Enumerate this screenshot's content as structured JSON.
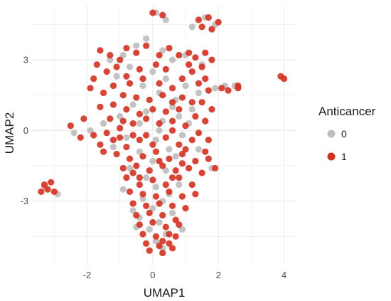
{
  "chart_data": {
    "type": "scatter",
    "xlabel": "UMAP1",
    "ylabel": "UMAP2",
    "xlim": [
      -3.7,
      4.4
    ],
    "ylim": [
      -5.7,
      5.3
    ],
    "x_ticks": [
      -2,
      0,
      2,
      4
    ],
    "y_ticks": [
      -3,
      0,
      3
    ],
    "grid": true,
    "legend": {
      "title": "Anticancer",
      "placement": "right",
      "entries": [
        {
          "label": "0",
          "color": "#bdbdbd"
        },
        {
          "label": "1",
          "color": "#d7301f"
        }
      ]
    },
    "series": [
      {
        "name": "0",
        "color": "#bdbdbd",
        "points": [
          [
            -0.9,
            3.2
          ],
          [
            -0.5,
            3.6
          ],
          [
            -0.2,
            3.9
          ],
          [
            0.3,
            3.4
          ],
          [
            0.6,
            3.0
          ],
          [
            -1.3,
            3.0
          ],
          [
            -0.7,
            2.7
          ],
          [
            0.0,
            2.5
          ],
          [
            0.4,
            2.2
          ],
          [
            -1.1,
            2.3
          ],
          [
            -0.3,
            1.9
          ],
          [
            0.2,
            1.6
          ],
          [
            0.7,
            1.3
          ],
          [
            1.0,
            1.9
          ],
          [
            1.4,
            1.6
          ],
          [
            1.9,
            1.8
          ],
          [
            2.2,
            1.9
          ],
          [
            2.5,
            1.9
          ],
          [
            1.2,
            0.9
          ],
          [
            0.8,
            0.6
          ],
          [
            0.3,
            0.4
          ],
          [
            -0.2,
            0.8
          ],
          [
            -0.6,
            1.1
          ],
          [
            -1.0,
            0.6
          ],
          [
            -1.5,
            0.3
          ],
          [
            -1.9,
            0.0
          ],
          [
            -2.4,
            -0.1
          ],
          [
            0.1,
            -0.4
          ],
          [
            0.5,
            -0.8
          ],
          [
            -0.4,
            -0.9
          ],
          [
            0.0,
            -1.3
          ],
          [
            0.4,
            -1.7
          ],
          [
            -0.2,
            -2.0
          ],
          [
            0.1,
            -2.4
          ],
          [
            0.5,
            -2.7
          ],
          [
            -0.3,
            -2.9
          ],
          [
            0.0,
            -3.3
          ],
          [
            0.6,
            -3.5
          ],
          [
            -0.4,
            -3.7
          ],
          [
            0.2,
            -3.9
          ],
          [
            -0.1,
            -4.2
          ],
          [
            0.4,
            -4.4
          ],
          [
            -0.5,
            -4.1
          ],
          [
            0.1,
            -4.7
          ],
          [
            0.3,
            -5.0
          ],
          [
            1.9,
            4.5
          ],
          [
            1.6,
            4.8
          ],
          [
            1.2,
            4.4
          ],
          [
            0.1,
            5.0
          ],
          [
            0.4,
            4.7
          ],
          [
            -3.3,
            -2.4
          ],
          [
            -2.9,
            -2.7
          ],
          [
            1.4,
            -0.8
          ],
          [
            1.8,
            -1.6
          ],
          [
            -0.8,
            -0.3
          ],
          [
            0.9,
            -0.2
          ],
          [
            -1.2,
            -0.7
          ],
          [
            0.7,
            -1.1
          ],
          [
            -0.7,
            -1.6
          ],
          [
            1.1,
            0.3
          ],
          [
            0.2,
            0.0
          ],
          [
            -0.4,
            0.3
          ],
          [
            0.6,
            1.0
          ],
          [
            1.5,
            2.8
          ],
          [
            1.0,
            3.2
          ],
          [
            0.8,
            -2.3
          ],
          [
            -0.9,
            -2.5
          ],
          [
            0.3,
            -3.0
          ],
          [
            -0.6,
            -3.4
          ],
          [
            0.9,
            -4.2
          ]
        ]
      },
      {
        "name": "1",
        "color": "#d7301f",
        "points": [
          [
            0.0,
            5.0
          ],
          [
            0.3,
            4.9
          ],
          [
            1.7,
            4.8
          ],
          [
            2.0,
            4.6
          ],
          [
            1.4,
            4.7
          ],
          [
            1.5,
            4.4
          ],
          [
            1.8,
            4.3
          ],
          [
            -0.8,
            3.5
          ],
          [
            -0.5,
            3.3
          ],
          [
            -0.2,
            3.6
          ],
          [
            0.2,
            3.2
          ],
          [
            0.5,
            3.5
          ],
          [
            0.8,
            3.2
          ],
          [
            1.1,
            3.3
          ],
          [
            1.3,
            3.1
          ],
          [
            1.6,
            3.3
          ],
          [
            1.8,
            3.0
          ],
          [
            -1.6,
            3.4
          ],
          [
            -1.3,
            3.2
          ],
          [
            -1.0,
            3.0
          ],
          [
            -1.7,
            2.8
          ],
          [
            -1.4,
            2.5
          ],
          [
            -1.1,
            2.7
          ],
          [
            -0.8,
            2.3
          ],
          [
            -0.4,
            2.6
          ],
          [
            0.1,
            2.8
          ],
          [
            0.4,
            2.6
          ],
          [
            1.2,
            2.5
          ],
          [
            1.5,
            2.7
          ],
          [
            0.9,
            2.2
          ],
          [
            1.4,
            2.0
          ],
          [
            1.7,
            1.7
          ],
          [
            2.1,
            1.8
          ],
          [
            2.6,
            1.9
          ],
          [
            -1.9,
            1.8
          ],
          [
            -1.5,
            1.6
          ],
          [
            -1.2,
            1.9
          ],
          [
            -0.9,
            1.5
          ],
          [
            -0.5,
            1.4
          ],
          [
            -0.1,
            1.3
          ],
          [
            0.3,
            1.5
          ],
          [
            0.6,
            1.8
          ],
          [
            0.9,
            1.4
          ],
          [
            1.2,
            1.2
          ],
          [
            -1.6,
            1.0
          ],
          [
            -1.2,
            1.1
          ],
          [
            -0.8,
            0.9
          ],
          [
            -0.4,
            0.7
          ],
          [
            0.0,
            0.9
          ],
          [
            0.4,
            0.8
          ],
          [
            0.8,
            0.9
          ],
          [
            1.3,
            0.6
          ],
          [
            1.6,
            0.4
          ],
          [
            -2.1,
            0.5
          ],
          [
            -2.5,
            0.2
          ],
          [
            -2.2,
            -0.3
          ],
          [
            -1.8,
            -0.2
          ],
          [
            -1.4,
            -0.1
          ],
          [
            -1.0,
            0.1
          ],
          [
            -0.6,
            0.3
          ],
          [
            -0.2,
            0.5
          ],
          [
            0.2,
            0.3
          ],
          [
            0.6,
            0.4
          ],
          [
            1.0,
            0.2
          ],
          [
            1.4,
            -0.1
          ],
          [
            1.7,
            -0.4
          ],
          [
            -1.6,
            -0.6
          ],
          [
            -1.2,
            -0.4
          ],
          [
            -0.8,
            -0.7
          ],
          [
            -0.4,
            -0.4
          ],
          [
            0.0,
            -0.6
          ],
          [
            0.4,
            -0.3
          ],
          [
            0.8,
            -0.6
          ],
          [
            1.2,
            -0.4
          ],
          [
            1.6,
            -0.9
          ],
          [
            -1.1,
            -1.0
          ],
          [
            -0.7,
            -1.2
          ],
          [
            -0.3,
            -1.1
          ],
          [
            0.1,
            -0.9
          ],
          [
            0.5,
            -1.2
          ],
          [
            0.9,
            -1.0
          ],
          [
            1.3,
            -1.3
          ],
          [
            1.7,
            -1.2
          ],
          [
            1.9,
            -1.6
          ],
          [
            -0.9,
            -1.6
          ],
          [
            -0.5,
            -1.5
          ],
          [
            -0.1,
            -1.7
          ],
          [
            0.3,
            -1.5
          ],
          [
            0.7,
            -1.7
          ],
          [
            1.1,
            -1.6
          ],
          [
            1.5,
            -1.8
          ],
          [
            -0.8,
            -2.0
          ],
          [
            -0.4,
            -2.3
          ],
          [
            0.0,
            -2.1
          ],
          [
            0.4,
            -2.3
          ],
          [
            0.8,
            -2.0
          ],
          [
            1.2,
            -2.3
          ],
          [
            -0.7,
            -2.6
          ],
          [
            -0.3,
            -2.7
          ],
          [
            0.1,
            -2.8
          ],
          [
            0.5,
            -2.6
          ],
          [
            0.9,
            -2.8
          ],
          [
            -0.6,
            -3.1
          ],
          [
            -0.2,
            -3.2
          ],
          [
            0.2,
            -3.1
          ],
          [
            0.6,
            -3.2
          ],
          [
            1.0,
            -3.3
          ],
          [
            -0.5,
            -3.6
          ],
          [
            -0.1,
            -3.5
          ],
          [
            0.3,
            -3.6
          ],
          [
            0.7,
            -3.8
          ],
          [
            -0.4,
            -4.0
          ],
          [
            0.0,
            -3.9
          ],
          [
            0.4,
            -4.1
          ],
          [
            0.8,
            -4.0
          ],
          [
            -0.3,
            -4.4
          ],
          [
            0.1,
            -4.5
          ],
          [
            0.5,
            -4.4
          ],
          [
            -0.2,
            -4.8
          ],
          [
            0.2,
            -4.9
          ],
          [
            0.5,
            -4.8
          ],
          [
            -0.1,
            -5.1
          ],
          [
            0.3,
            -5.2
          ],
          [
            0.6,
            -5.0
          ],
          [
            -3.4,
            -2.6
          ],
          [
            -3.2,
            -2.5
          ],
          [
            -3.0,
            -2.6
          ],
          [
            -3.1,
            -2.2
          ],
          [
            -3.3,
            -2.3
          ],
          [
            3.9,
            2.3
          ],
          [
            4.0,
            2.2
          ],
          [
            2.6,
            1.8
          ],
          [
            2.3,
            1.7
          ],
          [
            -0.7,
            2.0
          ],
          [
            0.2,
            2.0
          ],
          [
            -1.3,
            0.5
          ],
          [
            0.9,
            -1.4
          ],
          [
            -0.6,
            -0.2
          ],
          [
            0.6,
            0.0
          ],
          [
            -0.2,
            -0.2
          ],
          [
            1.0,
            -0.8
          ],
          [
            -1.0,
            -0.3
          ],
          [
            0.2,
            -1.3
          ],
          [
            -0.6,
            -1.8
          ],
          [
            0.6,
            -2.0
          ],
          [
            -0.4,
            -2.0
          ],
          [
            0.3,
            -4.7
          ],
          [
            0.7,
            -4.5
          ],
          [
            1.6,
            2.2
          ],
          [
            -0.3,
            2.2
          ],
          [
            0.6,
            1.2
          ],
          [
            -1.8,
            2.2
          ],
          [
            1.1,
            2.8
          ],
          [
            -0.9,
            0.4
          ],
          [
            1.5,
            1.2
          ],
          [
            1.8,
            0.9
          ],
          [
            -1.5,
            -0.9
          ],
          [
            1.3,
            -2.7
          ]
        ]
      }
    ]
  }
}
